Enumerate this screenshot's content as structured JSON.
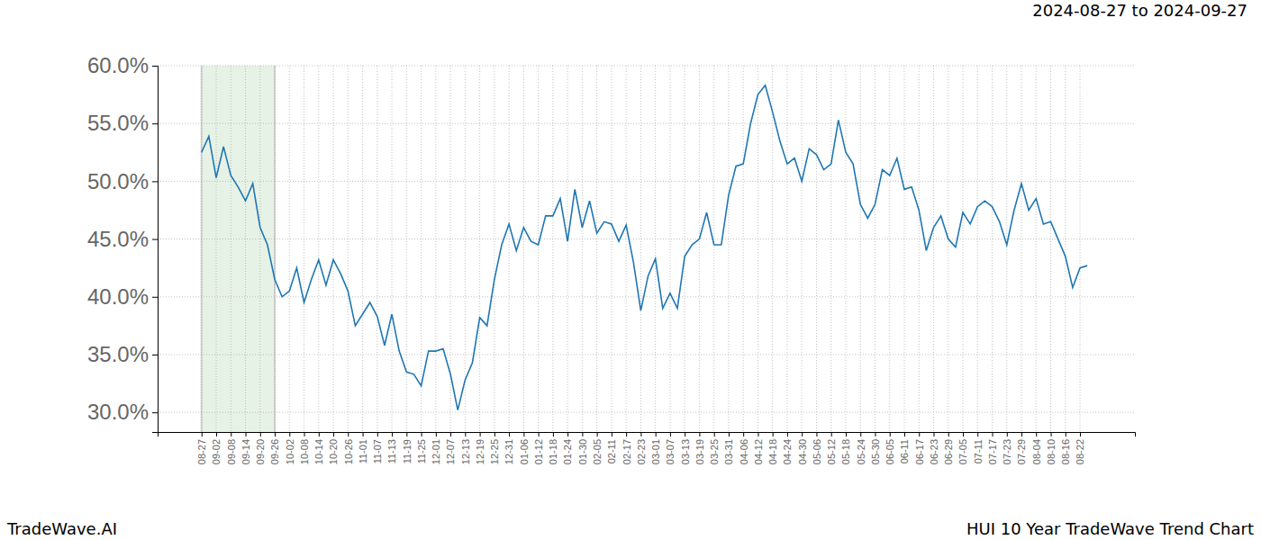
{
  "chart_data": {
    "type": "line",
    "title": "2024-08-27 to 2024-09-27",
    "annotations": [
      "TradeWave.AI",
      "HUI 10 Year TradeWave Trend Chart"
    ],
    "categories": [
      "08-27",
      null,
      "09-02",
      null,
      "09-08",
      null,
      "09-14",
      null,
      "09-20",
      null,
      "09-26",
      null,
      "10-02",
      null,
      "10-08",
      null,
      "10-14",
      null,
      "10-20",
      null,
      "10-26",
      null,
      "11-01",
      null,
      "11-07",
      null,
      "11-13",
      null,
      "11-19",
      null,
      "11-25",
      null,
      "12-01",
      null,
      "12-07",
      null,
      "12-13",
      null,
      "12-19",
      null,
      "12-25",
      null,
      "12-31",
      null,
      "01-06",
      null,
      "01-12",
      null,
      "01-18",
      null,
      "01-24",
      null,
      "01-30",
      null,
      "02-05",
      null,
      "02-11",
      null,
      "02-17",
      null,
      "02-23",
      null,
      "03-01",
      null,
      "03-07",
      null,
      "03-13",
      null,
      "03-19",
      null,
      "03-25",
      null,
      "03-31",
      null,
      "04-06",
      null,
      "04-12",
      null,
      "04-18",
      null,
      "04-24",
      null,
      "04-30",
      null,
      "05-06",
      null,
      "05-12",
      null,
      "05-18",
      null,
      "05-24",
      null,
      "05-30",
      null,
      "06-05",
      null,
      "06-11",
      null,
      "06-17",
      null,
      "06-23",
      null,
      "06-29",
      null,
      "07-05",
      null,
      "07-11",
      null,
      "07-17",
      null,
      "07-23",
      null,
      "07-29",
      null,
      "08-04",
      null,
      "08-10",
      null,
      "08-16",
      null,
      "08-22",
      null
    ],
    "values": [
      52.5,
      53.9,
      50.3,
      53.0,
      50.5,
      49.5,
      48.3,
      49.8,
      46.0,
      44.5,
      41.5,
      40.0,
      40.5,
      42.5,
      39.5,
      41.5,
      43.2,
      41.0,
      43.2,
      42.0,
      40.5,
      37.5,
      38.5,
      39.5,
      38.3,
      35.8,
      38.5,
      35.3,
      33.5,
      33.3,
      32.3,
      35.3,
      35.3,
      35.5,
      33.3,
      30.2,
      32.8,
      34.3,
      38.2,
      37.5,
      41.5,
      44.5,
      46.3,
      44.0,
      46.0,
      44.8,
      44.5,
      47.0,
      47.0,
      48.5,
      44.8,
      49.3,
      46.0,
      48.3,
      45.5,
      46.5,
      46.3,
      44.8,
      46.2,
      43.0,
      38.8,
      41.8,
      43.3,
      39.0,
      40.3,
      39.0,
      43.5,
      44.5,
      45.0,
      47.3,
      44.5,
      44.5,
      48.8,
      51.3,
      51.5,
      55.0,
      57.5,
      58.3,
      56.0,
      53.5,
      51.5,
      52.0,
      50.0,
      52.8,
      52.3,
      51.0,
      51.5,
      55.3,
      52.5,
      51.5,
      48.0,
      46.8,
      48.0,
      51.0,
      50.5,
      52.0,
      49.3,
      49.5,
      47.5,
      44.0,
      46.0,
      47.0,
      45.0,
      44.3,
      47.3,
      46.3,
      47.8,
      48.3,
      47.8,
      46.5,
      44.5,
      47.5,
      49.8,
      47.5,
      48.5,
      46.3,
      46.5,
      45.0,
      43.5,
      40.8,
      42.5,
      42.7
    ],
    "color": "#1f77b4",
    "highlight": [
      "08-27",
      "09-26"
    ],
    "ylim": [
      28.3,
      60.0
    ],
    "yticks": [
      {
        "value": 30,
        "label": "30.0%"
      },
      {
        "value": 35,
        "label": "35.0%"
      },
      {
        "value": 40,
        "label": "40.0%"
      },
      {
        "value": 45,
        "label": "45.0%"
      },
      {
        "value": 50,
        "label": "50.0%"
      },
      {
        "value": 55,
        "label": "55.0%"
      },
      {
        "value": 60,
        "label": "60.0%"
      }
    ],
    "grid": true
  }
}
